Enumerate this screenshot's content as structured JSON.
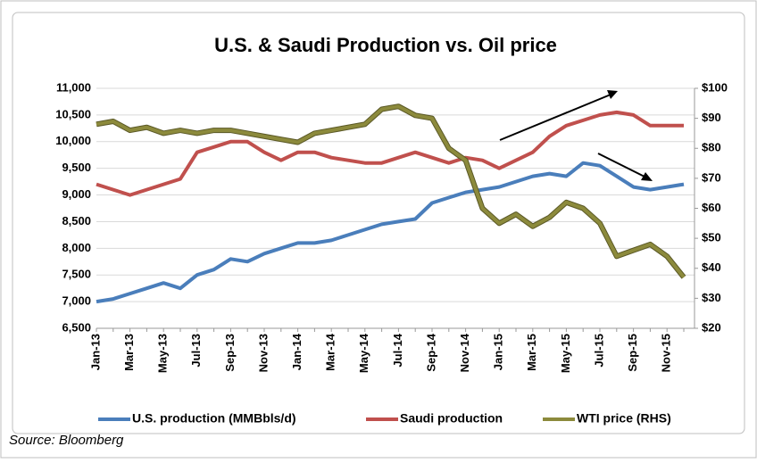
{
  "chart_data": {
    "type": "line",
    "title": "U.S. & Saudi Production vs. Oil price",
    "source": "Source: Bloomberg",
    "categories": [
      "Jan-13",
      null,
      "Mar-13",
      null,
      "May-13",
      null,
      "Jul-13",
      null,
      "Sep-13",
      null,
      "Nov-13",
      null,
      "Jan-14",
      null,
      "Mar-14",
      null,
      "May-14",
      null,
      "Jul-14",
      null,
      "Sep-14",
      null,
      "Nov-14",
      null,
      "Jan-15",
      null,
      "Mar-15",
      null,
      "May-15",
      null,
      "Jul-15",
      null,
      "Sep-15",
      null,
      "Nov-15",
      null
    ],
    "series": [
      {
        "name": "U.S. production (MMBbls/d)",
        "color": "#4a7ebb",
        "axis": "y",
        "values": [
          7000,
          7050,
          7150,
          7250,
          7350,
          7250,
          7500,
          7600,
          7800,
          7750,
          7900,
          8000,
          8100,
          8100,
          8150,
          8250,
          8350,
          8450,
          8500,
          8550,
          8850,
          8950,
          9050,
          9100,
          9150,
          9250,
          9350,
          9400,
          9350,
          9600,
          9550,
          9350,
          9150,
          9100,
          9150,
          9200
        ]
      },
      {
        "name": "Saudi production",
        "color": "#c0504d",
        "axis": "y",
        "values": [
          9200,
          9100,
          9000,
          9100,
          9200,
          9300,
          9800,
          9900,
          10000,
          10000,
          9800,
          9650,
          9800,
          9800,
          9700,
          9650,
          9600,
          9600,
          9700,
          9800,
          9700,
          9600,
          9700,
          9650,
          9500,
          9650,
          9800,
          10100,
          10300,
          10400,
          10500,
          10550,
          10500,
          10300,
          10300,
          10300
        ]
      },
      {
        "name": "WTI price (RHS)",
        "color": "#8c8a3c",
        "axis": "y2",
        "values": [
          88,
          89,
          86,
          87,
          85,
          86,
          85,
          86,
          86,
          85,
          84,
          83,
          82,
          85,
          86,
          87,
          88,
          93,
          94,
          91,
          90,
          80,
          76,
          60,
          55,
          58,
          54,
          57,
          62,
          60,
          55,
          44,
          46,
          48,
          44,
          37
        ]
      }
    ],
    "ylim": [
      6500,
      11000
    ],
    "yticks": [
      {
        "value": 6500,
        "label": "6,500"
      },
      {
        "value": 7000,
        "label": "7,000"
      },
      {
        "value": 7500,
        "label": "7,500"
      },
      {
        "value": 8000,
        "label": "8,000"
      },
      {
        "value": 8500,
        "label": "8,500"
      },
      {
        "value": 9000,
        "label": "9,000"
      },
      {
        "value": 9500,
        "label": "9,500"
      },
      {
        "value": 10000,
        "label": "10,000"
      },
      {
        "value": 10500,
        "label": "10,500"
      },
      {
        "value": 11000,
        "label": "11,000"
      }
    ],
    "y2lim": [
      20,
      100
    ],
    "y2ticks": [
      {
        "value": 20,
        "label": "$20"
      },
      {
        "value": 30,
        "label": "$30"
      },
      {
        "value": 40,
        "label": "$40"
      },
      {
        "value": 50,
        "label": "$50"
      },
      {
        "value": 60,
        "label": "$60"
      },
      {
        "value": 70,
        "label": "$70"
      },
      {
        "value": 80,
        "label": "$80"
      },
      {
        "value": 90,
        "label": "$90"
      },
      {
        "value": 100,
        "label": "$100"
      }
    ],
    "grid": true,
    "legend": "bottom"
  }
}
